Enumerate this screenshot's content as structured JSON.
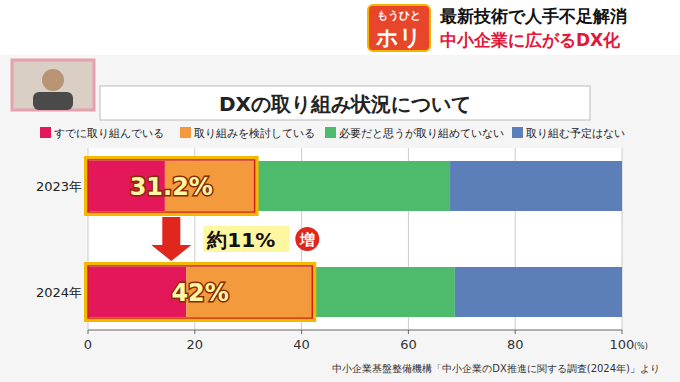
{
  "header": {
    "logo_top": "もうひと",
    "logo_bottom": "ホリ",
    "headline": [
      "最新技術で人手不足解消",
      "中小企業に広がるDX化"
    ]
  },
  "chart_data": {
    "type": "bar",
    "orientation": "horizontal",
    "stacked": true,
    "title": "DXの取り組み状況について",
    "categories": [
      "2023年",
      "2024年"
    ],
    "series": [
      {
        "name": "すでに取り組んでいる",
        "color": "#e3175a",
        "values": [
          14.4,
          18.4
        ]
      },
      {
        "name": "取り組みを検討している",
        "color": "#f39b3c",
        "values": [
          16.8,
          23.6
        ]
      },
      {
        "name": "必要だと思うが取り組めていない",
        "color": "#4dba6c",
        "values": [
          36.6,
          26.7
        ]
      },
      {
        "name": "取り組む予定はない",
        "color": "#5c7fba",
        "values": [
          32.2,
          31.3
        ]
      }
    ],
    "xlim": [
      0,
      100
    ],
    "xticks": [
      0,
      20,
      40,
      60,
      80,
      100
    ],
    "x_label": "(%)",
    "grid": true,
    "legend": "top",
    "annotations": [
      {
        "value": 31.2,
        "label": "31.2%"
      },
      {
        "value": 42,
        "label": "42%"
      }
    ],
    "change_label": "約11%",
    "change_mark": "増",
    "source": "中小企業基盤整備機構「中小企業のDX推進に関する調査(2024年)」より"
  }
}
